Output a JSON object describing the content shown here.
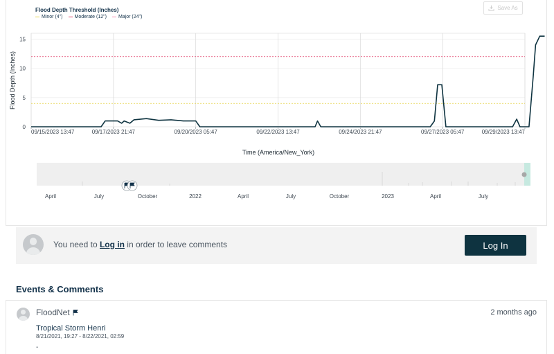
{
  "legend": {
    "title": "Flood Depth Threshold (Inches)",
    "items": [
      {
        "label": "Minor (4\")",
        "color": "#e7d44a"
      },
      {
        "label": "Moderate (12\")",
        "color": "#e0426a"
      },
      {
        "label": "Major (24\")",
        "color": "#f58ab0"
      }
    ]
  },
  "toolbar": {
    "save_label": "Save As",
    "save_icon": "download-icon"
  },
  "chart_data": {
    "type": "line",
    "ylabel": "Flood Depth (Inches)",
    "xlabel": "Time (America/New_York)",
    "ylim": [
      0,
      16
    ],
    "yticks": [
      0,
      5,
      10,
      15
    ],
    "xticks": [
      "09/15/2023 13:47",
      "09/17/2023 21:47",
      "09/20/2023 05:47",
      "09/22/2023 13:47",
      "09/24/2023 21:47",
      "09/27/2023 05:47",
      "09/29/2023 13:47"
    ],
    "thresholds": [
      {
        "name": "Minor (4\")",
        "value": 4,
        "color": "#e7d44a"
      },
      {
        "name": "Moderate (12\")",
        "value": 12,
        "color": "#e0426a"
      }
    ],
    "series": [
      {
        "color": "#0e3340",
        "points": [
          [
            0,
            0
          ],
          [
            0.85,
            0
          ],
          [
            0.9,
            1.0
          ],
          [
            1.05,
            1.0
          ],
          [
            1.1,
            0.6
          ],
          [
            1.13,
            1.0
          ],
          [
            1.2,
            0.6
          ],
          [
            1.25,
            1.2
          ],
          [
            1.4,
            1.4
          ],
          [
            1.55,
            1.1
          ],
          [
            1.7,
            1.2
          ],
          [
            1.85,
            1.0
          ],
          [
            2.0,
            1.0
          ],
          [
            2.05,
            0
          ],
          [
            3.45,
            0
          ],
          [
            3.48,
            1.0
          ],
          [
            3.52,
            0
          ],
          [
            4.85,
            0
          ],
          [
            4.9,
            1.0
          ],
          [
            4.94,
            7.2
          ],
          [
            4.99,
            7.2
          ],
          [
            5.04,
            0
          ],
          [
            5.85,
            0
          ],
          [
            5.9,
            1.3
          ],
          [
            5.94,
            0
          ],
          [
            6.05,
            0
          ],
          [
            6.1,
            8.5
          ],
          [
            6.13,
            14
          ],
          [
            6.18,
            15.5
          ],
          [
            6.24,
            15.5
          ]
        ]
      }
    ]
  },
  "navigator": {
    "labels": [
      "April",
      "July",
      "October",
      "2022",
      "April",
      "July",
      "October",
      "2023",
      "April",
      "July"
    ],
    "flag_icon": "flag-icon"
  },
  "comment": {
    "prompt_before": "You need to ",
    "link": "Log in",
    "prompt_after": " in order to leave comments",
    "login_button": "Log In"
  },
  "events": {
    "heading": "Events & Comments",
    "items": [
      {
        "user": "FloodNet",
        "time": "2 months ago",
        "title": "Tropical Storm Henri",
        "range": "8/21/2021, 19:27 - 8/22/2021, 02:59",
        "extra": "-"
      }
    ]
  }
}
